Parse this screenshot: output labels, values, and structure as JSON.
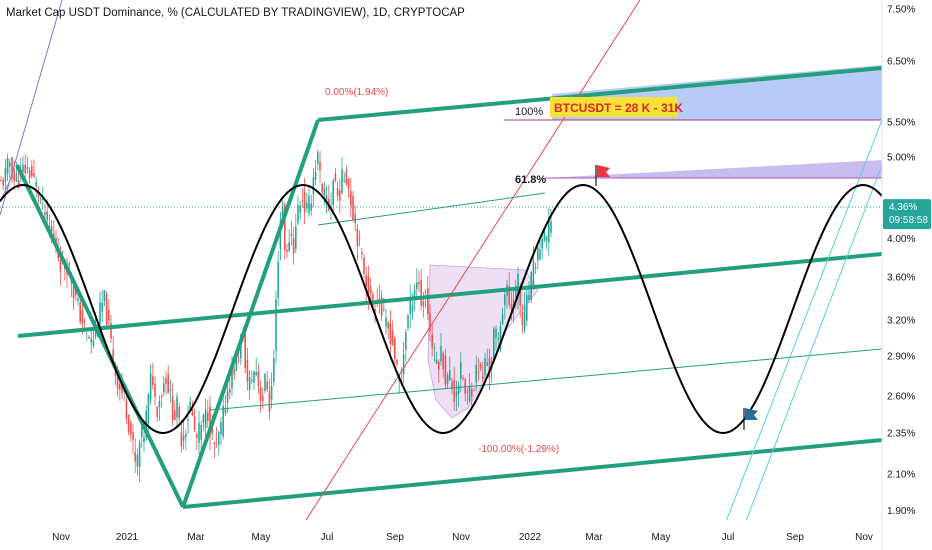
{
  "header": {
    "title": "Market Cap USDT Dominance, % (CALCULATED BY TRADINGVIEW), 1D, CRYPTOCAP"
  },
  "price_tag": {
    "value": "4.36%",
    "countdown": "09:58:58",
    "color": "#26a69a"
  },
  "colors": {
    "up": "#26a69a",
    "down": "#ef5350",
    "channel": "#22a07d",
    "sine": "#000000",
    "fib_line": "#f04848",
    "cyan": "#4fd0e8",
    "purple": "#8c6cd6"
  },
  "annotations": {
    "fib_top": "0.00%(1.94%)",
    "fib_bottom": "-100.00%(-1.29%)",
    "fib_618": "61.8%",
    "level_100": "100%",
    "target_label": "BTCUSDT = 28 K - 31K"
  },
  "chart_data": {
    "type": "candlestick",
    "title": "Market Cap USDT Dominance, % (CALCULATED BY TRADINGVIEW), 1D, CRYPTOCAP",
    "xlabel": "",
    "ylabel": "",
    "y_scale": "log",
    "ylim": [
      1.88,
      7.7
    ],
    "y_ticks": [
      "7.50%",
      "6.50%",
      "5.50%",
      "5.00%",
      "4.00%",
      "3.60%",
      "3.20%",
      "2.90%",
      "2.60%",
      "2.35%",
      "2.10%",
      "1.90%"
    ],
    "x_ticks": [
      "Nov",
      "2021",
      "Mar",
      "May",
      "Jul",
      "Sep",
      "Nov",
      "2022",
      "Mar",
      "May",
      "Jul",
      "Sep",
      "Nov"
    ],
    "last_value": 4.36,
    "grid": false,
    "legend": "none",
    "series": [
      {
        "points": [
          [
            0,
            4.62
          ],
          [
            5,
            4.75
          ],
          [
            10,
            4.95
          ],
          [
            14,
            4.7
          ],
          [
            20,
            4.72
          ],
          [
            24,
            4.85
          ],
          [
            30,
            4.8
          ],
          [
            36,
            4.62
          ],
          [
            42,
            4.4
          ],
          [
            48,
            4.15
          ],
          [
            55,
            3.95
          ],
          [
            62,
            3.7
          ],
          [
            68,
            3.75
          ],
          [
            74,
            3.45
          ],
          [
            80,
            3.25
          ],
          [
            86,
            3.1
          ],
          [
            92,
            3.0
          ],
          [
            98,
            3.2
          ],
          [
            104,
            3.4
          ],
          [
            110,
            3.05
          ],
          [
            116,
            2.75
          ],
          [
            120,
            2.65
          ],
          [
            124,
            2.6
          ],
          [
            128,
            2.45
          ],
          [
            132,
            2.3
          ],
          [
            136,
            2.12
          ],
          [
            140,
            2.3
          ],
          [
            144,
            2.35
          ],
          [
            148,
            2.55
          ],
          [
            152,
            2.8
          ],
          [
            156,
            2.5
          ],
          [
            160,
            2.6
          ],
          [
            166,
            2.75
          ],
          [
            170,
            2.6
          ],
          [
            174,
            2.45
          ],
          [
            178,
            2.55
          ],
          [
            180,
            2.3
          ],
          [
            186,
            2.4
          ],
          [
            190,
            2.55
          ],
          [
            196,
            2.3
          ],
          [
            202,
            2.4
          ],
          [
            208,
            2.5
          ],
          [
            212,
            2.3
          ],
          [
            216,
            2.25
          ],
          [
            222,
            2.4
          ],
          [
            226,
            2.6
          ],
          [
            232,
            2.75
          ],
          [
            238,
            2.9
          ],
          [
            242,
            3.1
          ],
          [
            248,
            2.65
          ],
          [
            252,
            2.75
          ],
          [
            256,
            2.8
          ],
          [
            262,
            2.55
          ],
          [
            266,
            2.75
          ],
          [
            270,
            2.5
          ],
          [
            274,
            2.9
          ],
          [
            278,
            3.8
          ],
          [
            282,
            4.5
          ],
          [
            286,
            3.7
          ],
          [
            290,
            4.1
          ],
          [
            294,
            3.9
          ],
          [
            298,
            4.35
          ],
          [
            302,
            4.5
          ],
          [
            306,
            4.3
          ],
          [
            310,
            4.4
          ],
          [
            314,
            4.8
          ],
          [
            318,
            5.0
          ],
          [
            322,
            4.45
          ],
          [
            326,
            4.5
          ],
          [
            330,
            4.3
          ],
          [
            334,
            4.8
          ],
          [
            338,
            4.45
          ],
          [
            342,
            4.7
          ],
          [
            346,
            4.8
          ],
          [
            350,
            4.5
          ],
          [
            354,
            4.25
          ],
          [
            358,
            4.0
          ],
          [
            362,
            3.75
          ],
          [
            366,
            3.6
          ],
          [
            370,
            3.4
          ],
          [
            374,
            3.3
          ],
          [
            378,
            3.45
          ],
          [
            382,
            3.25
          ],
          [
            386,
            3.15
          ],
          [
            390,
            3.1
          ],
          [
            394,
            2.95
          ],
          [
            398,
            2.7
          ],
          [
            402,
            2.8
          ],
          [
            406,
            3.15
          ],
          [
            410,
            3.3
          ],
          [
            414,
            3.5
          ],
          [
            418,
            3.6
          ],
          [
            422,
            3.3
          ],
          [
            426,
            3.45
          ],
          [
            430,
            3.1
          ],
          [
            434,
            2.9
          ],
          [
            438,
            2.85
          ],
          [
            442,
            2.95
          ],
          [
            446,
            2.7
          ],
          [
            450,
            2.75
          ],
          [
            454,
            2.6
          ],
          [
            458,
            2.7
          ],
          [
            462,
            2.8
          ],
          [
            466,
            2.55
          ],
          [
            470,
            2.65
          ],
          [
            474,
            2.7
          ],
          [
            478,
            2.85
          ],
          [
            482,
            2.7
          ],
          [
            486,
            2.9
          ],
          [
            490,
            2.75
          ],
          [
            494,
            3.1
          ],
          [
            498,
            3.0
          ],
          [
            502,
            3.3
          ],
          [
            506,
            3.5
          ],
          [
            510,
            3.3
          ],
          [
            514,
            3.4
          ],
          [
            518,
            3.55
          ],
          [
            522,
            3.15
          ],
          [
            526,
            3.3
          ],
          [
            530,
            3.5
          ],
          [
            534,
            3.7
          ],
          [
            538,
            3.85
          ],
          [
            542,
            4.0
          ],
          [
            546,
            3.95
          ],
          [
            550,
            4.2
          ],
          [
            553,
            4.36
          ]
        ]
      }
    ]
  }
}
